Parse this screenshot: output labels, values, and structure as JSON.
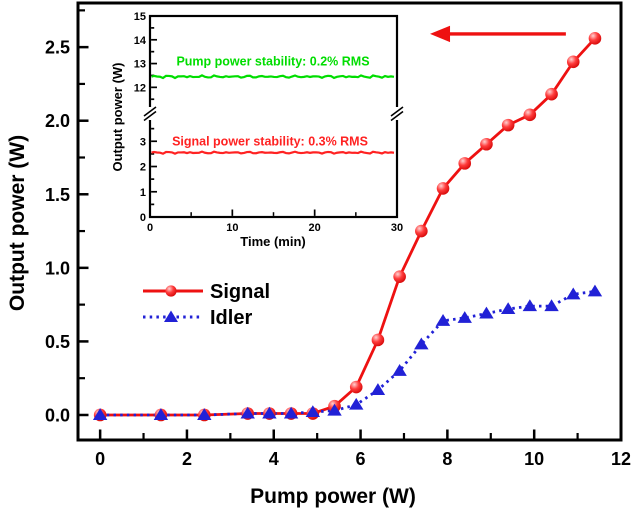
{
  "figure": {
    "background": "#ffffff"
  },
  "chart_data": {
    "type": "line",
    "main_plot": {
      "xlabel": "Pump power (W)",
      "ylabel": "Output power (W)",
      "xlim": [
        -0.51,
        12
      ],
      "ylim": [
        -0.17,
        2.8
      ],
      "x_tick_labels": [
        "0",
        "2",
        "4",
        "6",
        "8",
        "10",
        "12"
      ],
      "x_tick_values": [
        0,
        2,
        4,
        6,
        8,
        10,
        12
      ],
      "x_minor_ticks": [
        1,
        3,
        5,
        7,
        9,
        11
      ],
      "y_tick_labels": [
        "0.0",
        "0.5",
        "1.0",
        "1.5",
        "2.0",
        "2.5"
      ],
      "y_tick_values": [
        0,
        0.5,
        1,
        1.5,
        2,
        2.5
      ],
      "y_minor_ticks": [
        0.25,
        0.75,
        1.25,
        1.75,
        2.25,
        2.75
      ],
      "grid": false,
      "legend_position": "center-left",
      "series": [
        {
          "name": "Signal",
          "color": "#ee1111",
          "marker": "circle",
          "line_style": "solid",
          "x": [
            0,
            1.4,
            2.4,
            3.4,
            3.9,
            4.4,
            4.9,
            5.4,
            5.9,
            6.4,
            6.9,
            7.4,
            7.9,
            8.4,
            8.9,
            9.4,
            9.9,
            10.4,
            10.9,
            11.4
          ],
          "y": [
            0,
            0,
            0,
            0.01,
            0.01,
            0.01,
            0.01,
            0.06,
            0.19,
            0.51,
            0.94,
            1.25,
            1.54,
            1.71,
            1.84,
            1.97,
            2.04,
            2.18,
            2.4,
            2.56
          ]
        },
        {
          "name": "Idler",
          "color": "#2121d6",
          "marker": "triangle",
          "line_style": "dotted",
          "x": [
            0,
            1.4,
            2.4,
            3.4,
            3.9,
            4.4,
            4.9,
            5.4,
            5.9,
            6.4,
            6.9,
            7.4,
            7.9,
            8.4,
            8.9,
            9.4,
            9.9,
            10.4,
            10.9,
            11.4
          ],
          "y": [
            0,
            0,
            0,
            0.01,
            0.01,
            0.01,
            0.02,
            0.03,
            0.07,
            0.17,
            0.3,
            0.48,
            0.64,
            0.66,
            0.69,
            0.72,
            0.74,
            0.74,
            0.82,
            0.84
          ]
        }
      ],
      "arrow": {
        "color": "#ee1111",
        "y": 2.59,
        "x_tail": 10.73,
        "x_head": 7.6,
        "direction": "left"
      }
    },
    "inset_plot": {
      "xlabel": "Time (min)",
      "ylabel": "Output power (W)",
      "xlim": [
        0,
        30
      ],
      "x_tick_labels": [
        "0",
        "10",
        "20",
        "30"
      ],
      "x_tick_values": [
        0,
        10,
        20,
        30
      ],
      "x_minor_ticks": [
        5,
        15,
        25
      ],
      "y_axis_break": true,
      "upper_segment": {
        "tick_labels": [
          "15",
          "14",
          "13",
          "12"
        ],
        "tick_values": [
          15,
          14,
          13,
          12
        ],
        "minor_ticks": [
          14.5,
          13.5,
          12.5,
          11.5
        ],
        "value_range": [
          10.9,
          15
        ]
      },
      "lower_segment": {
        "tick_labels": [
          "3",
          "2",
          "1",
          "0"
        ],
        "tick_values": [
          3,
          2,
          1,
          0
        ],
        "minor_ticks": [
          3.5,
          2.5,
          1.5,
          0.5
        ],
        "value_range": [
          0,
          4.1
        ]
      },
      "series": [
        {
          "label": "Pump power stability: 0.2% RMS",
          "color": "#00dd00",
          "value": 12.45,
          "segment": "upper"
        },
        {
          "label": "Signal power stability: 0.3% RMS",
          "color": "#ff2222",
          "value": 2.55,
          "segment": "lower"
        }
      ]
    }
  }
}
